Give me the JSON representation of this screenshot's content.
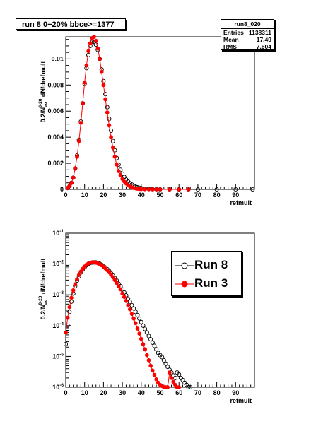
{
  "pad_title": "run 8 0−20% bbce>=1377",
  "stats": {
    "name": "run8_020",
    "rows": [
      {
        "label": "Entries",
        "value": "1138311"
      },
      {
        "label": "Mean",
        "value": "17.49"
      },
      {
        "label": "RMS",
        "value": "7.604"
      }
    ]
  },
  "legend": {
    "entries": [
      {
        "label": "Run 8",
        "series": "run8"
      },
      {
        "label": "Run 3",
        "series": "run3"
      }
    ]
  },
  "colors": {
    "run8": "#000000",
    "run3": "#ff0000"
  },
  "chart_data": [
    {
      "type": "scatter",
      "title": "",
      "xlabel": "refmult",
      "ylabel": "0.2/N_ev^{0-20} dN/drefmult",
      "xlim": [
        0,
        100
      ],
      "ylim": [
        0,
        0.0117
      ],
      "log_y": false,
      "x_ticks": [
        0,
        10,
        20,
        30,
        40,
        50,
        60,
        70,
        80,
        90
      ],
      "y_ticks": [
        0,
        0.002,
        0.004,
        0.006,
        0.008,
        0.01
      ],
      "y_tick_labels": [
        "0",
        "0.002",
        "0.004",
        "0.006",
        "0.008",
        "0.01"
      ],
      "series": [
        {
          "id": "run8",
          "marker": "open-circle",
          "x": [
            1,
            2,
            3,
            4,
            5,
            6,
            7,
            8,
            9,
            10,
            11,
            12,
            13,
            14,
            15,
            16,
            17,
            18,
            19,
            20,
            21,
            22,
            23,
            24,
            25,
            26,
            27,
            28,
            29,
            30,
            31,
            32,
            33,
            34,
            35,
            36,
            37,
            38,
            39,
            40,
            42,
            44,
            46,
            48,
            50,
            55,
            60,
            65,
            70,
            80,
            90,
            99
          ],
          "y": [
            0.0001,
            0.00025,
            0.0005,
            0.0009,
            0.0016,
            0.0026,
            0.0038,
            0.0052,
            0.0066,
            0.0081,
            0.0093,
            0.0103,
            0.011,
            0.0113,
            0.0113,
            0.0111,
            0.0107,
            0.01,
            0.0092,
            0.0083,
            0.0073,
            0.0063,
            0.0054,
            0.0045,
            0.0037,
            0.003,
            0.0024,
            0.0019,
            0.0015,
            0.0012,
            0.00095,
            0.00075,
            0.0006,
            0.00047,
            0.00037,
            0.00028,
            0.00021,
            0.00016,
            0.00012,
            9e-05,
            5e-05,
            3e-05,
            1.5e-05,
            1e-05,
            5e-06,
            2e-06,
            1e-06,
            5e-07,
            2e-07,
            1e-07,
            1e-07,
            1e-07
          ]
        },
        {
          "id": "run3",
          "marker": "filled-circle",
          "x": [
            1,
            2,
            3,
            4,
            5,
            6,
            7,
            8,
            9,
            10,
            11,
            12,
            13,
            14,
            15,
            16,
            17,
            18,
            19,
            20,
            21,
            22,
            23,
            24,
            25,
            26,
            27,
            28,
            29,
            30,
            31,
            32,
            33,
            34,
            35,
            36,
            37,
            38,
            39,
            40,
            42,
            44,
            46,
            48,
            50,
            55,
            60,
            65,
            70,
            80,
            90,
            99
          ],
          "y": [
            0.0001,
            0.00025,
            0.0005,
            0.0009,
            0.0016,
            0.0025,
            0.0037,
            0.0051,
            0.0066,
            0.0082,
            0.0095,
            0.0106,
            0.0112,
            0.0116,
            0.0117,
            0.0114,
            0.0108,
            0.01,
            0.009,
            0.008,
            0.0069,
            0.0059,
            0.0049,
            0.004,
            0.0032,
            0.0025,
            0.0019,
            0.0014,
            0.0011,
            0.0008,
            0.0006,
            0.00045,
            0.00032,
            0.00023,
            0.00016,
            0.00011,
            8e-05,
            5e-05,
            3e-05,
            2e-05,
            1e-05,
            5e-06,
            2e-06,
            1e-06,
            5e-07,
            1e-07,
            5e-08,
            1e-08,
            0.0,
            0.0,
            0.0,
            0.0
          ]
        }
      ]
    },
    {
      "type": "scatter",
      "title": "",
      "xlabel": "refmult",
      "ylabel": "0.2/N_ev^{0-20} dN/drefmult",
      "xlim": [
        0,
        100
      ],
      "ylim": [
        1e-06,
        0.1
      ],
      "log_y": true,
      "x_ticks": [
        0,
        10,
        20,
        30,
        40,
        50,
        60,
        70,
        80,
        90
      ],
      "y_ticks": [
        1e-06,
        1e-05,
        0.0001,
        0.001,
        0.01,
        0.1
      ],
      "y_tick_labels": [
        "10^{-6}",
        "10^{-5}",
        "10^{-4}",
        "10^{-3}",
        "10^{-2}",
        "10^{-1}"
      ],
      "series": [
        {
          "id": "run8",
          "marker": "open-circle",
          "x": [
            0,
            1,
            2,
            3,
            4,
            5,
            6,
            7,
            8,
            9,
            10,
            11,
            12,
            13,
            14,
            15,
            16,
            17,
            18,
            19,
            20,
            21,
            22,
            23,
            24,
            25,
            26,
            27,
            28,
            29,
            30,
            31,
            32,
            33,
            34,
            35,
            36,
            37,
            38,
            39,
            40,
            41,
            42,
            43,
            44,
            45,
            46,
            47,
            48,
            49,
            50,
            51,
            52,
            53,
            54,
            55,
            56,
            57,
            58,
            59,
            60,
            61,
            62,
            63,
            64,
            65,
            66
          ],
          "y": [
            2.5e-05,
            0.0001,
            0.00028,
            0.0006,
            0.0011,
            0.0019,
            0.0029,
            0.004,
            0.0053,
            0.0066,
            0.0079,
            0.0091,
            0.0101,
            0.0108,
            0.0112,
            0.0113,
            0.0112,
            0.0108,
            0.0102,
            0.0094,
            0.0086,
            0.0077,
            0.0068,
            0.0059,
            0.005,
            0.0042,
            0.0035,
            0.0029,
            0.0023,
            0.0019,
            0.0015,
            0.0012,
            0.00095,
            0.00075,
            0.00059,
            0.00046,
            0.00036,
            0.00028,
            0.00022,
            0.00017,
            0.00013,
            0.0001,
            7.8e-05,
            6e-05,
            4.6e-05,
            3.6e-05,
            2.8e-05,
            2.2e-05,
            1.7e-05,
            1.3e-05,
            1.1e-05,
            9.5e-06,
            7.5e-06,
            5.8e-06,
            4.6e-06,
            3.7e-06,
            3e-06,
            2.4e-06,
            2e-06,
            3e-06,
            2.6e-06,
            2e-06,
            1.7e-06,
            1.4e-06,
            1.2e-06,
            1e-06,
            1e-06
          ]
        },
        {
          "id": "run3",
          "marker": "filled-circle",
          "x": [
            0,
            1,
            2,
            3,
            4,
            5,
            6,
            7,
            8,
            9,
            10,
            11,
            12,
            13,
            14,
            15,
            16,
            17,
            18,
            19,
            20,
            21,
            22,
            23,
            24,
            25,
            26,
            27,
            28,
            29,
            30,
            31,
            32,
            33,
            34,
            35,
            36,
            37,
            38,
            39,
            40,
            41,
            42,
            43,
            44,
            45,
            46,
            47,
            48,
            49,
            50,
            51,
            52,
            53,
            54,
            55,
            56,
            57,
            58,
            59,
            60
          ],
          "y": [
            6e-05,
            0.00018,
            0.0004,
            0.0008,
            0.0014,
            0.0022,
            0.0032,
            0.0044,
            0.0057,
            0.007,
            0.0083,
            0.0095,
            0.0104,
            0.011,
            0.0113,
            0.0113,
            0.0111,
            0.0106,
            0.0099,
            0.0091,
            0.0082,
            0.0072,
            0.0063,
            0.0054,
            0.0045,
            0.0037,
            0.003,
            0.0024,
            0.0019,
            0.0015,
            0.0011,
            0.00085,
            0.00063,
            0.00046,
            0.00034,
            0.00024,
            0.00017,
            0.00012,
            8e-05,
            5.5e-05,
            3.7e-05,
            2.5e-05,
            1.7e-05,
            1.1e-05,
            7.5e-06,
            5e-06,
            3.5e-06,
            2.5e-06,
            1.8e-06,
            1.4e-06,
            1.2e-06,
            1.1e-06,
            1e-06,
            1e-06,
            1e-06,
            3e-06,
            2e-06,
            1.5e-06,
            1.2e-06,
            1e-06,
            1e-06
          ]
        }
      ]
    }
  ]
}
